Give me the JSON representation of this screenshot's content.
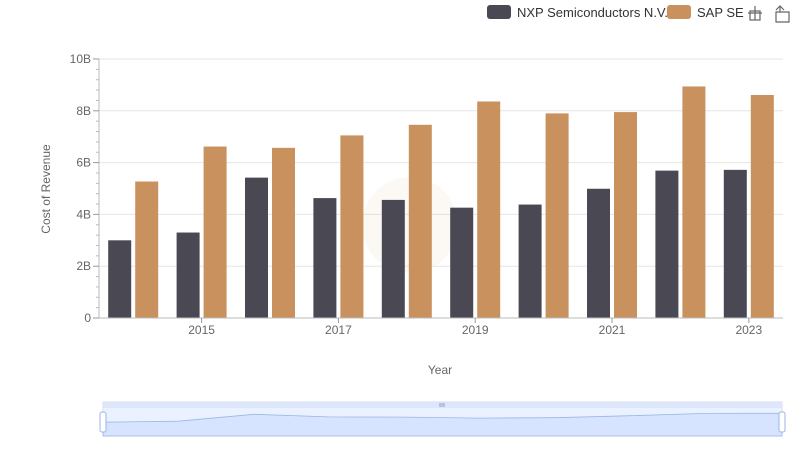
{
  "chart_data": {
    "type": "bar",
    "title": "",
    "xlabel": "Year",
    "ylabel": "Cost of Revenue",
    "categories": [
      "2014",
      "2015",
      "2016",
      "2017",
      "2018",
      "2019",
      "2020",
      "2021",
      "2022",
      "2023"
    ],
    "x_tick_labels": [
      "2015",
      "2017",
      "2019",
      "2021",
      "2023"
    ],
    "y_tick_labels": [
      "0",
      "2B",
      "4B",
      "6B",
      "8B",
      "10B"
    ],
    "ylim": [
      0,
      10000000000
    ],
    "y_tick_values": [
      0,
      2000000000,
      4000000000,
      6000000000,
      8000000000,
      10000000000
    ],
    "grid": true,
    "legend_position": "top-right",
    "series": [
      {
        "name": "NXP Semiconductors N.V.",
        "color": "#4a4953",
        "values": [
          3000000000,
          3300000000,
          5420000000,
          4630000000,
          4560000000,
          4260000000,
          4380000000,
          4990000000,
          5690000000,
          5720000000
        ]
      },
      {
        "name": "SAP SE",
        "color": "#c8915d",
        "values": [
          5270000000,
          6620000000,
          6570000000,
          7050000000,
          7460000000,
          8360000000,
          7900000000,
          7950000000,
          8940000000,
          8610000000
        ]
      }
    ],
    "overview_color": "#d6e4ff",
    "toolbar_icons": [
      "zoom-select-icon",
      "zoom-reset-icon"
    ]
  }
}
